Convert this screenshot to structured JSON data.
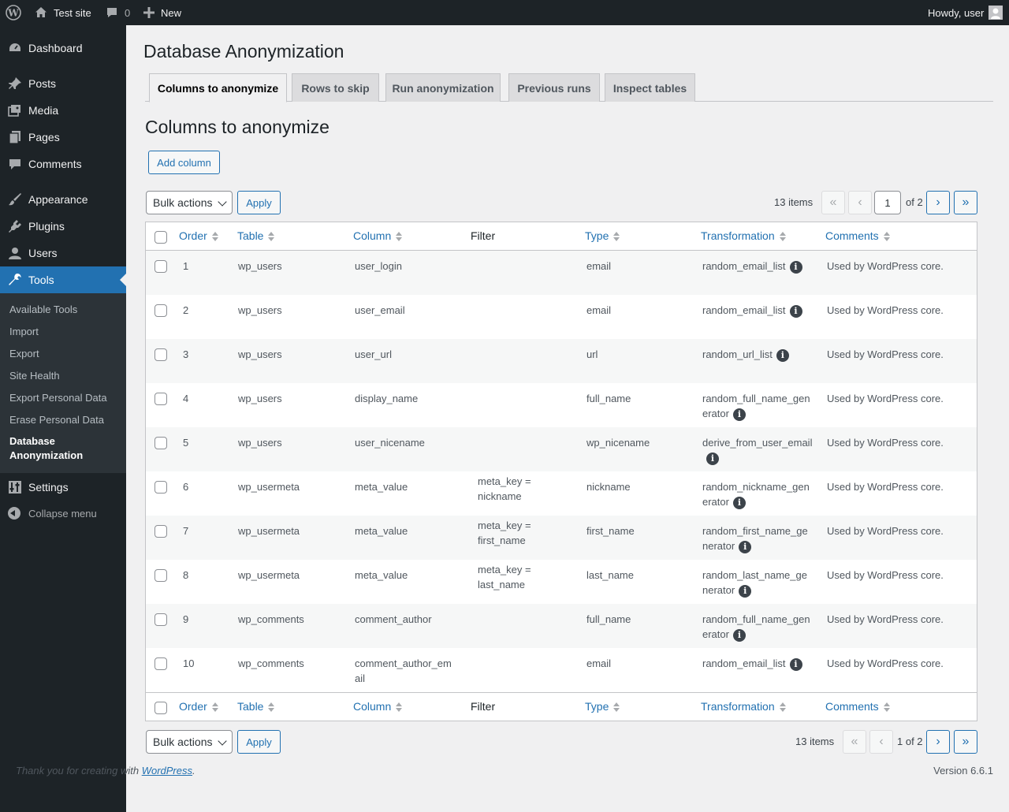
{
  "adminbar": {
    "site_name": "Test site",
    "comments_count": "0",
    "new_label": "New",
    "howdy": "Howdy, user"
  },
  "sidebar": {
    "items": [
      {
        "label": "Dashboard",
        "icon": "dashboard-icon"
      },
      {
        "label": "Posts",
        "icon": "pushpin-icon"
      },
      {
        "label": "Media",
        "icon": "media-icon"
      },
      {
        "label": "Pages",
        "icon": "pages-icon"
      },
      {
        "label": "Comments",
        "icon": "comment-icon"
      },
      {
        "label": "Appearance",
        "icon": "paintbrush-icon"
      },
      {
        "label": "Plugins",
        "icon": "plugin-icon"
      },
      {
        "label": "Users",
        "icon": "user-icon"
      },
      {
        "label": "Tools",
        "icon": "wrench-icon"
      },
      {
        "label": "Settings",
        "icon": "settings-icon"
      }
    ],
    "tools_submenu": [
      "Available Tools",
      "Import",
      "Export",
      "Site Health",
      "Export Personal Data",
      "Erase Personal Data",
      "Database Anonymization"
    ],
    "collapse_label": "Collapse menu"
  },
  "page": {
    "title": "Database Anonymization",
    "tabs": [
      "Columns to anonymize",
      "Rows to skip",
      "Run anonymization",
      "Previous runs",
      "Inspect tables"
    ],
    "section_title": "Columns to anonymize",
    "add_column": "Add column"
  },
  "tablenav": {
    "bulk_actions": "Bulk actions",
    "apply": "Apply",
    "items_count": "13 items",
    "first": "«",
    "prev": "‹",
    "next": "›",
    "last": "»",
    "current_page": "1",
    "of_pages": "of 2",
    "page_of": "1 of 2"
  },
  "table": {
    "headers": {
      "order": "Order",
      "table": "Table",
      "column": "Column",
      "filter": "Filter",
      "type": "Type",
      "transformation": "Transformation",
      "comments": "Comments"
    },
    "rows": [
      {
        "order": "1",
        "table": "wp_users",
        "column": "user_login",
        "filter": "",
        "type": "email",
        "transformation": "random_email_list",
        "comments": "Used by WordPress core."
      },
      {
        "order": "2",
        "table": "wp_users",
        "column": "user_email",
        "filter": "",
        "type": "email",
        "transformation": "random_email_list",
        "comments": "Used by WordPress core."
      },
      {
        "order": "3",
        "table": "wp_users",
        "column": "user_url",
        "filter": "",
        "type": "url",
        "transformation": "random_url_list",
        "comments": "Used by WordPress core."
      },
      {
        "order": "4",
        "table": "wp_users",
        "column": "display_name",
        "filter": "",
        "type": "full_name",
        "transformation": "random_full_name_generator",
        "comments": "Used by WordPress core."
      },
      {
        "order": "5",
        "table": "wp_users",
        "column": "user_nicename",
        "filter": "",
        "type": "wp_nicename",
        "transformation": "derive_from_user_email",
        "comments": "Used by WordPress core."
      },
      {
        "order": "6",
        "table": "wp_usermeta",
        "column": "meta_value",
        "filter": "meta_key = nickname",
        "type": "nickname",
        "transformation": "random_nickname_generator",
        "comments": "Used by WordPress core."
      },
      {
        "order": "7",
        "table": "wp_usermeta",
        "column": "meta_value",
        "filter": "meta_key = first_name",
        "type": "first_name",
        "transformation": "random_first_name_generator",
        "comments": "Used by WordPress core."
      },
      {
        "order": "8",
        "table": "wp_usermeta",
        "column": "meta_value",
        "filter": "meta_key = last_name",
        "type": "last_name",
        "transformation": "random_last_name_generator",
        "comments": "Used by WordPress core."
      },
      {
        "order": "9",
        "table": "wp_comments",
        "column": "comment_author",
        "filter": "",
        "type": "full_name",
        "transformation": "random_full_name_generator",
        "comments": "Used by WordPress core."
      },
      {
        "order": "10",
        "table": "wp_comments",
        "column": "comment_author_email",
        "filter": "",
        "type": "email",
        "transformation": "random_email_list",
        "comments": "Used by WordPress core."
      }
    ]
  },
  "footer": {
    "thanks_prefix": "Thank you for creating with ",
    "thanks_link": "WordPress",
    "thanks_suffix": ".",
    "version": "Version 6.6.1"
  }
}
